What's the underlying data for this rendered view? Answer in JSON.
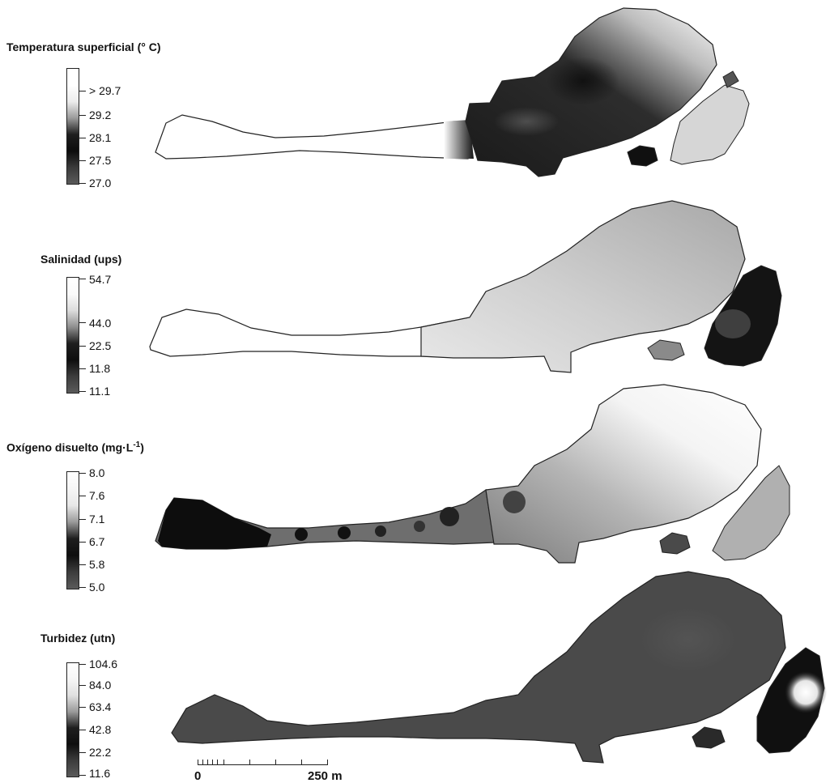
{
  "panels": [
    {
      "title": "Temperatura superficial (° C)",
      "ticks": [
        "> 29.7",
        "29.2",
        "28.1",
        "27.5",
        "27.0"
      ],
      "gradient": [
        "#ffffff",
        "#ffffff",
        "#ececec",
        "#9a9a9a",
        "#1e1e1e",
        "#0c0c0c",
        "#3a3a3a",
        "#5a5a5a"
      ]
    },
    {
      "title": "Salinidad (ups)",
      "ticks": [
        "54.7",
        "44.0",
        "22.5",
        "11.8",
        "11.1"
      ],
      "gradient": [
        "#ffffff",
        "#fafafa",
        "#dcdcdc",
        "#8f8f8f",
        "#1e1e1e",
        "#0e0e0e",
        "#3c3c3c",
        "#5a5a5a"
      ]
    },
    {
      "title_main": "Oxígeno disuelto (mg·L",
      "title_sup": "-1",
      "title_end": ")",
      "ticks": [
        "8.0",
        "7.6",
        "7.1",
        "6.7",
        "5.8",
        "5.0"
      ],
      "gradient": [
        "#ffffff",
        "#f6f6f6",
        "#e8e8e8",
        "#9a9a9a",
        "#1e1e1e",
        "#0e0e0e",
        "#3c3c3c",
        "#5a5a5a"
      ]
    },
    {
      "title": "Turbidez (utn)",
      "ticks": [
        "104.6",
        "84.0",
        "63.4",
        "42.8",
        "22.2",
        "11.6"
      ],
      "gradient": [
        "#ffffff",
        "#f6f6f6",
        "#e0e0e0",
        "#9a9a9a",
        "#1e1e1e",
        "#0e0e0e",
        "#3c3c3c",
        "#5a5a5a"
      ]
    }
  ],
  "scale": {
    "start": "0",
    "end": "250 m"
  },
  "colors": {
    "outline": "#222222",
    "dark": "#141414",
    "mid": "#555555",
    "light": "#d8d8d8"
  }
}
